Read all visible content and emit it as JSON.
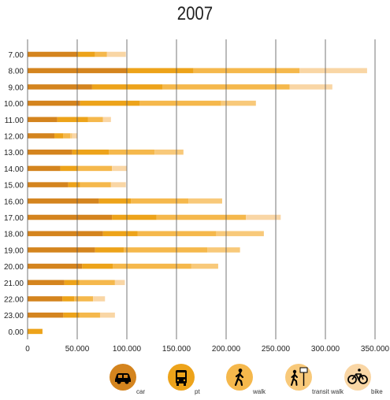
{
  "chart_data": {
    "type": "bar",
    "orientation": "horizontal",
    "stacked": true,
    "title": "2007",
    "xlabel": "",
    "ylabel": "",
    "xlim": [
      0,
      350000
    ],
    "x_ticks": [
      "0",
      "50.000",
      "100.000",
      "150.000",
      "200.000",
      "250.000",
      "300.000",
      "350.000"
    ],
    "grid": "vertical",
    "legend_position": "bottom",
    "categories": [
      "7.00",
      "8.00",
      "9.00",
      "10.00",
      "11.00",
      "12.00",
      "13.00",
      "14.00",
      "15.00",
      "16.00",
      "17.00",
      "18.00",
      "19.00",
      "20.00",
      "21.00",
      "22.00",
      "23.00",
      "0.00"
    ],
    "series": [
      {
        "name": "car",
        "color": "#d4841e",
        "values": [
          50000,
          100000,
          65000,
          53000,
          30000,
          27000,
          45000,
          33000,
          41000,
          72000,
          85000,
          76000,
          68000,
          55000,
          37000,
          35000,
          36000,
          0
        ]
      },
      {
        "name": "pt",
        "color": "#eda31a",
        "values": [
          18000,
          67000,
          71000,
          60000,
          31000,
          9000,
          37000,
          17000,
          12000,
          32000,
          45000,
          35000,
          29000,
          31000,
          15000,
          12000,
          16000,
          15000
        ]
      },
      {
        "name": "walk",
        "color": "#f5b84c",
        "values": [
          12000,
          107000,
          128000,
          82000,
          15000,
          7000,
          46000,
          35000,
          31000,
          58000,
          90000,
          79000,
          84000,
          79000,
          36000,
          19000,
          21000,
          0
        ]
      },
      {
        "name": "transit walk",
        "color": "#f8c97a",
        "values": [
          0,
          0,
          0,
          35000,
          0,
          2000,
          29000,
          0,
          0,
          34000,
          0,
          48000,
          33000,
          27000,
          0,
          0,
          0,
          0
        ]
      },
      {
        "name": "bike",
        "color": "#f9d6a5",
        "values": [
          19000,
          68000,
          43000,
          0,
          8000,
          5000,
          0,
          15000,
          15000,
          0,
          35000,
          0,
          0,
          0,
          10000,
          12000,
          15000,
          0
        ]
      }
    ]
  },
  "legend": [
    {
      "label": "car",
      "icon": "car-icon",
      "color": "#d4841e"
    },
    {
      "label": "pt",
      "icon": "bus-icon",
      "color": "#eda31a"
    },
    {
      "label": "walk",
      "icon": "walking-person-icon",
      "color": "#f5b84c"
    },
    {
      "label": "transit walk",
      "icon": "transit-walk-icon",
      "color": "#f8c97a"
    },
    {
      "label": "bike",
      "icon": "bicycle-icon",
      "color": "#f9d6a5"
    }
  ]
}
